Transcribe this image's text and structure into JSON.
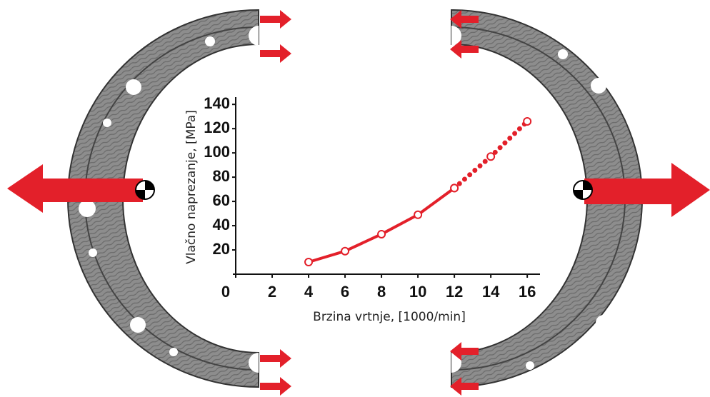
{
  "chart_data": {
    "type": "line",
    "x_label": "Brzina vrtnje, [1000/min]",
    "y_label": "Vlačno naprezanje, [MPa]",
    "x": [
      4,
      6,
      8,
      10,
      12,
      14,
      16
    ],
    "series": [
      {
        "color": "#e3202a",
        "style": "solid",
        "values": [
          10,
          19,
          33,
          49,
          71,
          null,
          null
        ]
      },
      {
        "color": "#e3202a",
        "style": "dotted",
        "values": [
          null,
          null,
          null,
          null,
          71,
          97,
          126
        ]
      }
    ],
    "xlim": [
      0,
      16.7
    ],
    "xticks": [
      0,
      2,
      4,
      6,
      8,
      10,
      12,
      14,
      16
    ],
    "ylim": [
      0,
      146
    ],
    "yticks": [
      20,
      40,
      60,
      80,
      100,
      120,
      140
    ]
  }
}
